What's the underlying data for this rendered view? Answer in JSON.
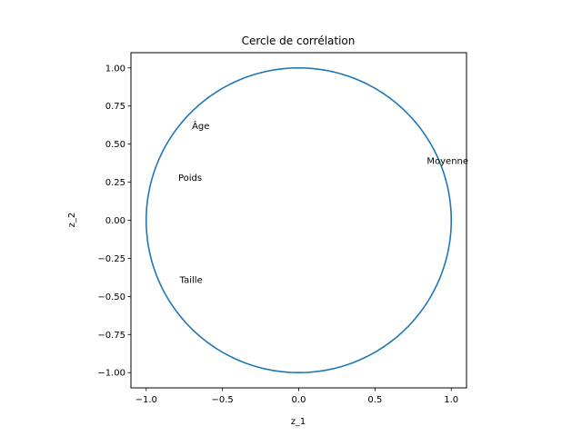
{
  "chart_data": {
    "type": "scatter",
    "title": "Cercle de corrélation",
    "xlabel": "z_1",
    "ylabel": "z_2",
    "xlim": [
      -1.1,
      1.1
    ],
    "ylim": [
      -1.1,
      1.1
    ],
    "grid": false,
    "legend": "none",
    "x_ticks": [
      -1.0,
      -0.5,
      0.0,
      0.5,
      1.0
    ],
    "x_tick_labels": [
      "−1.0",
      "−0.5",
      "0.0",
      "0.5",
      "1.0"
    ],
    "y_ticks": [
      -1.0,
      -0.75,
      -0.5,
      -0.25,
      0.0,
      0.25,
      0.5,
      0.75,
      1.0
    ],
    "y_tick_labels": [
      "−1.00",
      "−0.75",
      "−0.50",
      "−0.25",
      "0.00",
      "0.25",
      "0.50",
      "0.75",
      "1.00"
    ],
    "circle": {
      "center": [
        0,
        0
      ],
      "radius": 1.0,
      "color": "#1f77b4"
    },
    "annotations": [
      {
        "label": "Âge",
        "x": -0.7,
        "y": 0.6
      },
      {
        "label": "Poids",
        "x": -0.79,
        "y": 0.26
      },
      {
        "label": "Taille",
        "x": -0.78,
        "y": -0.41
      },
      {
        "label": "Moyenne",
        "x": 0.84,
        "y": 0.37
      }
    ]
  }
}
